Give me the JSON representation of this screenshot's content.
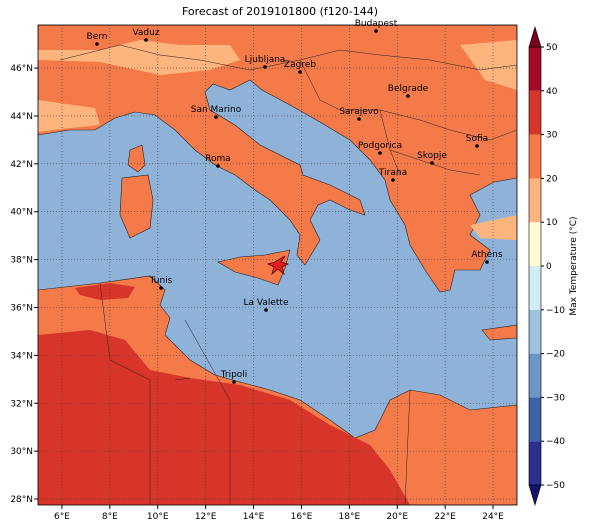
{
  "map": {
    "title": "Forecast of 2019101800 (f120-144)",
    "xlim": [
      5,
      25
    ],
    "ylim": [
      27.75,
      47.8
    ],
    "xticks": [
      {
        "value": 6,
        "label": "6°E"
      },
      {
        "value": 8,
        "label": "8°E"
      },
      {
        "value": 10,
        "label": "10°E"
      },
      {
        "value": 12,
        "label": "12°E"
      },
      {
        "value": 14,
        "label": "14°E"
      },
      {
        "value": 16,
        "label": "16°E"
      },
      {
        "value": 18,
        "label": "18°E"
      },
      {
        "value": 20,
        "label": "20°E"
      },
      {
        "value": 22,
        "label": "22°E"
      },
      {
        "value": 24,
        "label": "24°E"
      }
    ],
    "yticks": [
      {
        "value": 28,
        "label": "28°N"
      },
      {
        "value": 30,
        "label": "30°N"
      },
      {
        "value": 32,
        "label": "32°N"
      },
      {
        "value": 34,
        "label": "34°N"
      },
      {
        "value": 36,
        "label": "36°N"
      },
      {
        "value": 38,
        "label": "38°N"
      },
      {
        "value": 40,
        "label": "40°N"
      },
      {
        "value": 42,
        "label": "42°N"
      },
      {
        "value": 44,
        "label": "44°N"
      },
      {
        "value": 46,
        "label": "46°N"
      }
    ],
    "grid": true,
    "cities": [
      "Bern",
      "Vaduz",
      "Budapest",
      "Ljubljana",
      "Zagreb",
      "Belgrade",
      "San Marino",
      "Sarajevo",
      "Sofia",
      "Podgorica",
      "Skopje",
      "Roma",
      "Tirana",
      "Athens",
      "Tunis",
      "La Valette",
      "Tripoli"
    ]
  },
  "colorbar": {
    "label": "Max Temperature (°C)",
    "lim": [
      -50,
      50
    ],
    "ticks": [
      50,
      40,
      30,
      20,
      10,
      0,
      {
        "value": -10,
        "label": "−10"
      },
      {
        "value": -20,
        "label": "−20"
      },
      {
        "value": -30,
        "label": "−30"
      },
      {
        "value": -40,
        "label": "−40"
      },
      {
        "value": -50,
        "label": "−50"
      }
    ],
    "colors": [
      "#2b2f8f",
      "#3e62a8",
      "#6b96c6",
      "#9dc3de",
      "#d2ecf4",
      "#fefbd2",
      "#fdb47d",
      "#f47a4a",
      "#d8352a",
      "#a50c26"
    ],
    "under_color": "#14146b",
    "over_color": "#7a0020"
  }
}
